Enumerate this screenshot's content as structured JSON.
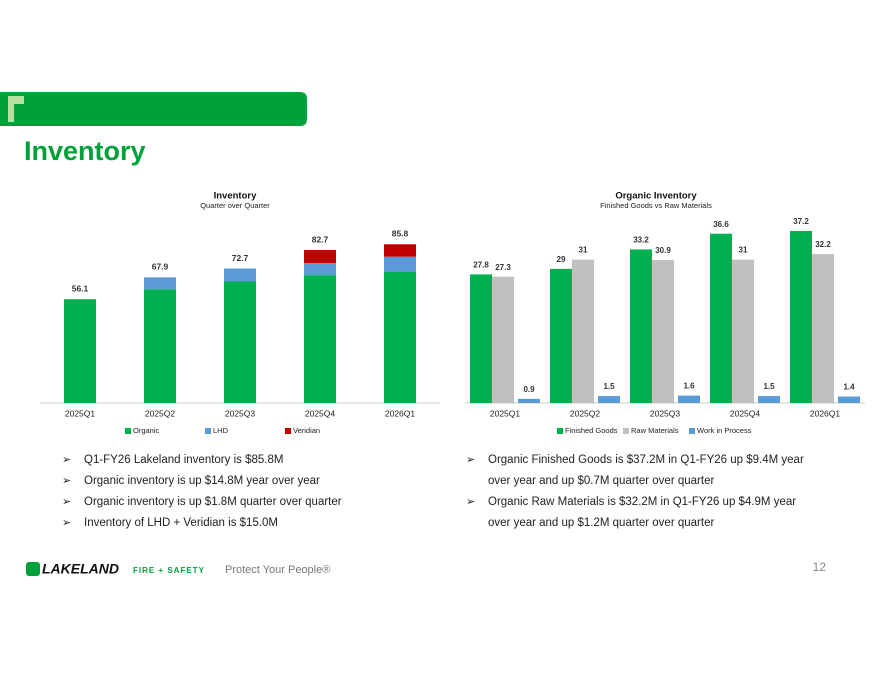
{
  "header": {
    "title": "Inventory"
  },
  "chart_data": [
    {
      "type": "stacked_bar",
      "title": "Inventory",
      "subtitle": "Quarter over Quarter",
      "categories": [
        "2025Q1",
        "2025Q2",
        "2025Q3",
        "2025Q4",
        "2026Q1"
      ],
      "series": [
        {
          "name": "Organic",
          "color": "#00b050",
          "values": [
            56.1,
            61.5,
            65.7,
            69.1,
            70.8
          ]
        },
        {
          "name": "LHD",
          "color": "#5b9bd5",
          "values": [
            0,
            6.4,
            7.0,
            6.6,
            8.3
          ]
        },
        {
          "name": "Veridian",
          "color": "#c00000",
          "values": [
            0,
            0,
            0,
            7.0,
            6.7
          ]
        }
      ],
      "totals": [
        56.1,
        67.9,
        72.7,
        82.7,
        85.8
      ],
      "ylim": [
        0,
        100
      ],
      "legend": "bottom"
    },
    {
      "type": "grouped_bar",
      "title": "Organic Inventory",
      "subtitle": "Finished Goods vs Raw Materials",
      "categories": [
        "2025Q1",
        "2025Q2",
        "2025Q3",
        "2025Q4",
        "2026Q1"
      ],
      "series": [
        {
          "name": "Finished Goods",
          "color": "#00b050",
          "values": [
            27.8,
            29.0,
            33.2,
            36.6,
            37.2
          ]
        },
        {
          "name": "Raw Materials",
          "color": "#c0c0c0",
          "values": [
            27.3,
            31.0,
            30.9,
            31.0,
            32.2
          ]
        },
        {
          "name": "Work in Process",
          "color": "#5b9bd5",
          "values": [
            0.9,
            1.5,
            1.6,
            1.5,
            1.4
          ]
        }
      ],
      "ylim": [
        0,
        40
      ],
      "legend": "bottom"
    }
  ],
  "bullets_left": [
    "Q1-FY26 Lakeland inventory is $85.8M",
    "Organic inventory is up $14.8M year over year",
    "Organic inventory is up $1.8M quarter over quarter",
    "Inventory of LHD + Veridian is $15.0M"
  ],
  "bullets_right": [
    "Organic Finished Goods is $37.2M in Q1-FY26 up $9.4M year over year and up $0.7M quarter over quarter",
    "Organic Raw Materials is $32.2M in Q1-FY26 up $4.9M year over year and up $1.2M quarter over quarter"
  ],
  "footer": {
    "brand": "LAKELAND",
    "brand_sub": "FIRE + SAFETY",
    "tagline": "Protect Your People®",
    "page": "12"
  }
}
